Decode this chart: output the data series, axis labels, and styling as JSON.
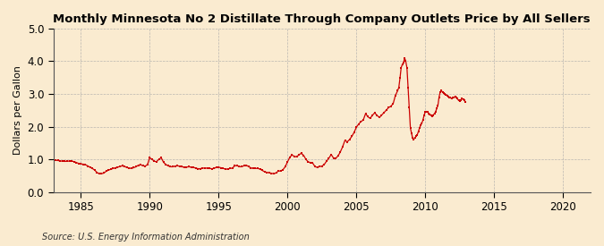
{
  "title": "Monthly Minnesota No 2 Distillate Through Company Outlets Price by All Sellers",
  "ylabel": "Dollars per Gallon",
  "source": "Source: U.S. Energy Information Administration",
  "background_color": "#faebd0",
  "line_color": "#cc0000",
  "xlim": [
    1983,
    2022
  ],
  "ylim": [
    0.0,
    5.0
  ],
  "yticks": [
    0.0,
    1.0,
    2.0,
    3.0,
    4.0,
    5.0
  ],
  "xticks": [
    1985,
    1990,
    1995,
    2000,
    2005,
    2010,
    2015,
    2020
  ],
  "data": [
    [
      1983.17,
      0.972
    ],
    [
      1983.33,
      0.962
    ],
    [
      1983.5,
      0.951
    ],
    [
      1983.67,
      0.94
    ],
    [
      1983.83,
      0.935
    ],
    [
      1984.0,
      0.939
    ],
    [
      1984.17,
      0.945
    ],
    [
      1984.33,
      0.942
    ],
    [
      1984.5,
      0.93
    ],
    [
      1984.67,
      0.9
    ],
    [
      1984.83,
      0.875
    ],
    [
      1985.0,
      0.86
    ],
    [
      1985.17,
      0.85
    ],
    [
      1985.33,
      0.835
    ],
    [
      1985.5,
      0.795
    ],
    [
      1985.67,
      0.755
    ],
    [
      1985.83,
      0.72
    ],
    [
      1986.0,
      0.67
    ],
    [
      1986.17,
      0.595
    ],
    [
      1986.33,
      0.56
    ],
    [
      1986.5,
      0.558
    ],
    [
      1986.67,
      0.578
    ],
    [
      1986.83,
      0.632
    ],
    [
      1987.0,
      0.67
    ],
    [
      1987.17,
      0.692
    ],
    [
      1987.33,
      0.718
    ],
    [
      1987.5,
      0.74
    ],
    [
      1987.67,
      0.758
    ],
    [
      1987.83,
      0.78
    ],
    [
      1988.0,
      0.798
    ],
    [
      1988.17,
      0.778
    ],
    [
      1988.33,
      0.75
    ],
    [
      1988.5,
      0.73
    ],
    [
      1988.67,
      0.72
    ],
    [
      1988.83,
      0.742
    ],
    [
      1989.0,
      0.77
    ],
    [
      1989.17,
      0.82
    ],
    [
      1989.33,
      0.832
    ],
    [
      1989.5,
      0.8
    ],
    [
      1989.67,
      0.792
    ],
    [
      1989.83,
      0.835
    ],
    [
      1990.0,
      1.048
    ],
    [
      1990.17,
      0.998
    ],
    [
      1990.33,
      0.938
    ],
    [
      1990.5,
      0.93
    ],
    [
      1990.67,
      1.002
    ],
    [
      1990.83,
      1.048
    ],
    [
      1991.0,
      0.908
    ],
    [
      1991.17,
      0.84
    ],
    [
      1991.33,
      0.8
    ],
    [
      1991.5,
      0.772
    ],
    [
      1991.67,
      0.77
    ],
    [
      1991.83,
      0.792
    ],
    [
      1992.0,
      0.8
    ],
    [
      1992.17,
      0.788
    ],
    [
      1992.33,
      0.77
    ],
    [
      1992.5,
      0.76
    ],
    [
      1992.67,
      0.76
    ],
    [
      1992.83,
      0.77
    ],
    [
      1993.0,
      0.76
    ],
    [
      1993.17,
      0.752
    ],
    [
      1993.33,
      0.73
    ],
    [
      1993.5,
      0.712
    ],
    [
      1993.67,
      0.712
    ],
    [
      1993.83,
      0.73
    ],
    [
      1994.0,
      0.73
    ],
    [
      1994.17,
      0.73
    ],
    [
      1994.33,
      0.72
    ],
    [
      1994.5,
      0.71
    ],
    [
      1994.67,
      0.72
    ],
    [
      1994.83,
      0.752
    ],
    [
      1995.0,
      0.76
    ],
    [
      1995.17,
      0.74
    ],
    [
      1995.33,
      0.72
    ],
    [
      1995.5,
      0.7
    ],
    [
      1995.67,
      0.7
    ],
    [
      1995.83,
      0.72
    ],
    [
      1996.0,
      0.73
    ],
    [
      1996.17,
      0.8
    ],
    [
      1996.33,
      0.81
    ],
    [
      1996.5,
      0.772
    ],
    [
      1996.67,
      0.772
    ],
    [
      1996.83,
      0.8
    ],
    [
      1997.0,
      0.82
    ],
    [
      1997.17,
      0.78
    ],
    [
      1997.33,
      0.74
    ],
    [
      1997.5,
      0.72
    ],
    [
      1997.67,
      0.72
    ],
    [
      1997.83,
      0.72
    ],
    [
      1998.0,
      0.7
    ],
    [
      1998.17,
      0.66
    ],
    [
      1998.33,
      0.62
    ],
    [
      1998.5,
      0.6
    ],
    [
      1998.67,
      0.59
    ],
    [
      1998.83,
      0.57
    ],
    [
      1999.0,
      0.56
    ],
    [
      1999.17,
      0.58
    ],
    [
      1999.33,
      0.64
    ],
    [
      1999.5,
      0.642
    ],
    [
      1999.67,
      0.68
    ],
    [
      1999.83,
      0.772
    ],
    [
      2000.0,
      0.92
    ],
    [
      2000.17,
      1.068
    ],
    [
      2000.33,
      1.13
    ],
    [
      2000.5,
      1.09
    ],
    [
      2000.67,
      1.072
    ],
    [
      2000.83,
      1.142
    ],
    [
      2001.0,
      1.18
    ],
    [
      2001.17,
      1.12
    ],
    [
      2001.33,
      1.002
    ],
    [
      2001.5,
      0.92
    ],
    [
      2001.67,
      0.902
    ],
    [
      2001.83,
      0.882
    ],
    [
      2002.0,
      0.772
    ],
    [
      2002.17,
      0.752
    ],
    [
      2002.33,
      0.78
    ],
    [
      2002.5,
      0.79
    ],
    [
      2002.67,
      0.842
    ],
    [
      2002.83,
      0.942
    ],
    [
      2003.0,
      1.032
    ],
    [
      2003.17,
      1.148
    ],
    [
      2003.33,
      1.042
    ],
    [
      2003.5,
      1.032
    ],
    [
      2003.67,
      1.102
    ],
    [
      2003.83,
      1.222
    ],
    [
      2004.0,
      1.382
    ],
    [
      2004.17,
      1.58
    ],
    [
      2004.33,
      1.532
    ],
    [
      2004.5,
      1.602
    ],
    [
      2004.67,
      1.702
    ],
    [
      2004.83,
      1.822
    ],
    [
      2005.0,
      1.982
    ],
    [
      2005.17,
      2.082
    ],
    [
      2005.33,
      2.152
    ],
    [
      2005.5,
      2.202
    ],
    [
      2005.67,
      2.402
    ],
    [
      2005.83,
      2.302
    ],
    [
      2006.0,
      2.252
    ],
    [
      2006.17,
      2.352
    ],
    [
      2006.33,
      2.422
    ],
    [
      2006.5,
      2.342
    ],
    [
      2006.67,
      2.282
    ],
    [
      2006.83,
      2.352
    ],
    [
      2007.0,
      2.422
    ],
    [
      2007.17,
      2.502
    ],
    [
      2007.33,
      2.582
    ],
    [
      2007.5,
      2.622
    ],
    [
      2007.67,
      2.702
    ],
    [
      2007.83,
      2.952
    ],
    [
      2008.0,
      3.102
    ],
    [
      2008.08,
      3.202
    ],
    [
      2008.17,
      3.502
    ],
    [
      2008.25,
      3.802
    ],
    [
      2008.33,
      3.902
    ],
    [
      2008.42,
      3.952
    ],
    [
      2008.5,
      4.102
    ],
    [
      2008.58,
      4.002
    ],
    [
      2008.67,
      3.802
    ],
    [
      2008.75,
      3.202
    ],
    [
      2008.83,
      2.602
    ],
    [
      2008.92,
      1.952
    ],
    [
      2009.0,
      1.802
    ],
    [
      2009.08,
      1.652
    ],
    [
      2009.17,
      1.612
    ],
    [
      2009.25,
      1.652
    ],
    [
      2009.33,
      1.702
    ],
    [
      2009.42,
      1.752
    ],
    [
      2009.5,
      1.852
    ],
    [
      2009.58,
      1.952
    ],
    [
      2009.67,
      2.052
    ],
    [
      2009.75,
      2.102
    ],
    [
      2009.83,
      2.202
    ],
    [
      2009.92,
      2.352
    ],
    [
      2010.0,
      2.452
    ],
    [
      2010.08,
      2.452
    ],
    [
      2010.17,
      2.452
    ],
    [
      2010.25,
      2.402
    ],
    [
      2010.33,
      2.382
    ],
    [
      2010.42,
      2.352
    ],
    [
      2010.5,
      2.322
    ],
    [
      2010.58,
      2.352
    ],
    [
      2010.67,
      2.402
    ],
    [
      2010.75,
      2.452
    ],
    [
      2010.83,
      2.552
    ],
    [
      2010.92,
      2.652
    ],
    [
      2011.0,
      2.902
    ],
    [
      2011.08,
      3.052
    ],
    [
      2011.17,
      3.102
    ],
    [
      2011.25,
      3.052
    ],
    [
      2011.33,
      3.022
    ],
    [
      2011.42,
      3.002
    ],
    [
      2011.5,
      2.982
    ],
    [
      2011.58,
      2.952
    ],
    [
      2011.67,
      2.922
    ],
    [
      2011.75,
      2.902
    ],
    [
      2011.83,
      2.882
    ],
    [
      2011.92,
      2.852
    ],
    [
      2012.0,
      2.882
    ],
    [
      2012.08,
      2.902
    ],
    [
      2012.17,
      2.922
    ],
    [
      2012.25,
      2.882
    ],
    [
      2012.33,
      2.852
    ],
    [
      2012.42,
      2.802
    ],
    [
      2012.5,
      2.782
    ],
    [
      2012.58,
      2.822
    ],
    [
      2012.67,
      2.852
    ],
    [
      2012.75,
      2.832
    ],
    [
      2012.83,
      2.802
    ],
    [
      2012.92,
      2.752
    ]
  ]
}
